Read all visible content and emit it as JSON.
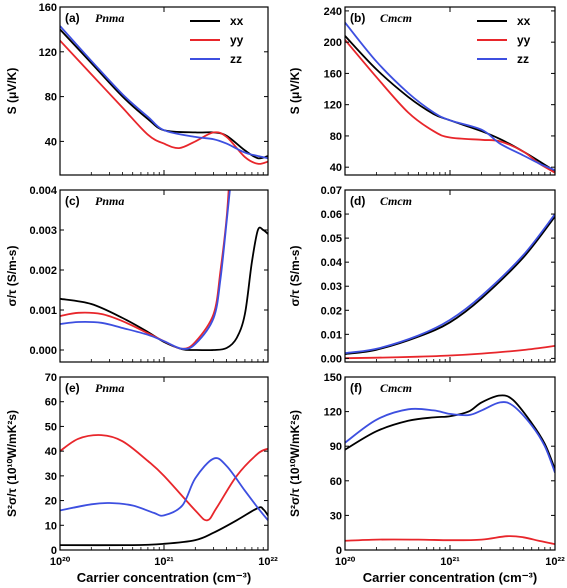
{
  "chart_data": [
    {
      "panel": "(a)",
      "title": "Pnma",
      "type": "line",
      "ylabel": "S (μV/K)",
      "xlabel": "",
      "xscale": "log",
      "xlim": [
        1e+20,
        1e+22
      ],
      "ylim": [
        10,
        160
      ],
      "yticks": [
        "40",
        "80",
        "120",
        "160"
      ],
      "xticks": [],
      "legend": [
        "xx",
        "yy",
        "zz"
      ],
      "legend_position": "top-right",
      "series": [
        {
          "name": "xx",
          "color": "#000000",
          "points": [
            [
              1e+20,
              140
            ],
            [
              2e+20,
              110
            ],
            [
              4e+20,
              80
            ],
            [
              7e+20,
              60
            ],
            [
              1e+21,
              50
            ],
            [
              2e+21,
              48
            ],
            [
              3e+21,
              48
            ],
            [
              4e+21,
              45
            ],
            [
              6e+21,
              32
            ],
            [
              8e+21,
              25
            ],
            [
              1e+22,
              27
            ]
          ]
        },
        {
          "name": "yy",
          "color": "#e8262b",
          "points": [
            [
              1e+20,
              130
            ],
            [
              2e+20,
              100
            ],
            [
              4e+20,
              70
            ],
            [
              7e+20,
              46
            ],
            [
              1e+21,
              38
            ],
            [
              1.4e+21,
              34
            ],
            [
              2e+21,
              40
            ],
            [
              3e+21,
              48
            ],
            [
              4e+21,
              44
            ],
            [
              6e+21,
              26
            ],
            [
              8e+21,
              20
            ],
            [
              1e+22,
              22
            ]
          ]
        },
        {
          "name": "zz",
          "color": "#3d4fe0",
          "points": [
            [
              1e+20,
              143
            ],
            [
              2e+20,
              112
            ],
            [
              4e+20,
              82
            ],
            [
              7e+20,
              62
            ],
            [
              1e+21,
              50
            ],
            [
              2e+21,
              44
            ],
            [
              3e+21,
              42
            ],
            [
              4e+21,
              38
            ],
            [
              6e+21,
              30
            ],
            [
              8e+21,
              27
            ],
            [
              1e+22,
              25
            ]
          ]
        }
      ]
    },
    {
      "panel": "(b)",
      "title": "Cmcm",
      "type": "line",
      "ylabel": "S (μV/K)",
      "xlabel": "",
      "xscale": "log",
      "xlim": [
        1e+20,
        1e+22
      ],
      "ylim": [
        30,
        245
      ],
      "yticks": [
        "40",
        "80",
        "120",
        "160",
        "200",
        "240"
      ],
      "xticks": [],
      "legend": [
        "xx",
        "yy",
        "zz"
      ],
      "legend_position": "top-right",
      "series": [
        {
          "name": "xx",
          "color": "#000000",
          "points": [
            [
              1e+20,
              208
            ],
            [
              2e+20,
              165
            ],
            [
              4e+20,
              130
            ],
            [
              7e+20,
              108
            ],
            [
              1e+21,
              100
            ],
            [
              2e+21,
              86
            ],
            [
              3e+21,
              76
            ],
            [
              5e+21,
              60
            ],
            [
              7e+21,
              48
            ],
            [
              1e+22,
              35
            ]
          ]
        },
        {
          "name": "yy",
          "color": "#e8262b",
          "points": [
            [
              1e+20,
              203
            ],
            [
              2e+20,
              155
            ],
            [
              4e+20,
              110
            ],
            [
              7e+20,
              86
            ],
            [
              1e+21,
              78
            ],
            [
              2e+21,
              75
            ],
            [
              3e+21,
              73
            ],
            [
              5e+21,
              60
            ],
            [
              7e+21,
              45
            ],
            [
              1e+22,
              33
            ]
          ]
        },
        {
          "name": "zz",
          "color": "#3d4fe0",
          "points": [
            [
              1e+20,
              225
            ],
            [
              2e+20,
              175
            ],
            [
              4e+20,
              135
            ],
            [
              7e+20,
              110
            ],
            [
              1e+21,
              100
            ],
            [
              2e+21,
              88
            ],
            [
              3e+21,
              70
            ],
            [
              5e+21,
              55
            ],
            [
              7e+21,
              45
            ],
            [
              1e+22,
              36
            ]
          ]
        }
      ]
    },
    {
      "panel": "(c)",
      "title": "Pnma",
      "type": "line",
      "ylabel": "σ/τ (S/m-s)",
      "xlabel": "",
      "xscale": "log",
      "xlim": [
        1e+20,
        1e+22
      ],
      "ylim": [
        -0.0003,
        0.004
      ],
      "yticks": [
        "0.000",
        "0.001",
        "0.002",
        "0.003",
        "0.004"
      ],
      "xticks": [],
      "series": [
        {
          "name": "xx",
          "color": "#000000",
          "points": [
            [
              1e+20,
              0.00128
            ],
            [
              2e+20,
              0.00115
            ],
            [
              4e+20,
              0.0008
            ],
            [
              7e+20,
              0.00045
            ],
            [
              1e+21,
              0.0002
            ],
            [
              1.5e+21,
              2e-05
            ],
            [
              2e+21,
              0.0
            ],
            [
              3e+21,
              0.0
            ],
            [
              4e+21,
              5e-05
            ],
            [
              5e+21,
              0.0003
            ],
            [
              6e+21,
              0.0009
            ],
            [
              7e+21,
              0.0022
            ],
            [
              8e+21,
              0.003
            ],
            [
              9e+21,
              0.003
            ],
            [
              1e+22,
              0.0029
            ]
          ]
        },
        {
          "name": "yy",
          "color": "#e8262b",
          "points": [
            [
              1e+20,
              0.00085
            ],
            [
              1.5e+20,
              0.00093
            ],
            [
              2.5e+20,
              0.0009
            ],
            [
              4e+20,
              0.00072
            ],
            [
              7e+20,
              0.00042
            ],
            [
              1e+21,
              0.00022
            ],
            [
              1.5e+21,
              3e-05
            ],
            [
              2e+21,
              0.0002
            ],
            [
              3e+21,
              0.0009
            ],
            [
              3.5e+21,
              0.002
            ],
            [
              4e+21,
              0.0033
            ],
            [
              4.3e+21,
              0.0045
            ]
          ]
        },
        {
          "name": "zz",
          "color": "#3d4fe0",
          "points": [
            [
              1e+20,
              0.00065
            ],
            [
              1.5e+20,
              0.0007
            ],
            [
              2.5e+20,
              0.00068
            ],
            [
              4e+20,
              0.00055
            ],
            [
              7e+20,
              0.00038
            ],
            [
              1e+21,
              0.00022
            ],
            [
              1.5e+21,
              3e-05
            ],
            [
              2e+21,
              0.00015
            ],
            [
              3e+21,
              0.0008
            ],
            [
              3.5e+21,
              0.0018
            ],
            [
              4e+21,
              0.0032
            ],
            [
              4.5e+21,
              0.0045
            ]
          ]
        }
      ]
    },
    {
      "panel": "(d)",
      "title": "Cmcm",
      "type": "line",
      "ylabel": "σ/τ (S/m-s)",
      "xlabel": "",
      "xscale": "log",
      "xlim": [
        1e+20,
        1e+22
      ],
      "ylim": [
        -0.0015,
        0.07
      ],
      "yticks": [
        "0.00",
        "0.01",
        "0.02",
        "0.03",
        "0.04",
        "0.05",
        "0.06",
        "0.07"
      ],
      "xticks": [],
      "series": [
        {
          "name": "xx",
          "color": "#000000",
          "points": [
            [
              1e+20,
              0.0018
            ],
            [
              2e+20,
              0.0036
            ],
            [
              5e+20,
              0.009
            ],
            [
              1e+21,
              0.015
            ],
            [
              2e+21,
              0.025
            ],
            [
              5e+21,
              0.042
            ],
            [
              1e+22,
              0.059
            ]
          ]
        },
        {
          "name": "yy",
          "color": "#e8262b",
          "points": [
            [
              1e+20,
              0.0001
            ],
            [
              2e+20,
              0.0003
            ],
            [
              5e+20,
              0.0007
            ],
            [
              1e+21,
              0.0012
            ],
            [
              2e+21,
              0.002
            ],
            [
              5e+21,
              0.0035
            ],
            [
              1e+22,
              0.0052
            ]
          ]
        },
        {
          "name": "zz",
          "color": "#3d4fe0",
          "points": [
            [
              1e+20,
              0.0022
            ],
            [
              2e+20,
              0.004
            ],
            [
              5e+20,
              0.0095
            ],
            [
              1e+21,
              0.016
            ],
            [
              2e+21,
              0.026
            ],
            [
              5e+21,
              0.043
            ],
            [
              1e+22,
              0.06
            ]
          ]
        }
      ]
    },
    {
      "panel": "(e)",
      "title": "Pnma",
      "type": "line",
      "ylabel": "S²σ/τ (10¹⁰W/mK²s)",
      "xlabel": "Carrier concentration (cm⁻³)",
      "xscale": "log",
      "xlim": [
        1e+20,
        1e+22
      ],
      "ylim": [
        0,
        70
      ],
      "yticks": [
        "0",
        "10",
        "20",
        "30",
        "40",
        "50",
        "60",
        "70"
      ],
      "xticks": [
        "10²⁰",
        "10²¹",
        "10²²"
      ],
      "series": [
        {
          "name": "xx",
          "color": "#000000",
          "points": [
            [
              1e+20,
              2
            ],
            [
              5e+20,
              2
            ],
            [
              1e+21,
              2.5
            ],
            [
              2e+21,
              4
            ],
            [
              3e+21,
              7
            ],
            [
              5e+21,
              12
            ],
            [
              8e+21,
              17
            ],
            [
              9e+21,
              16.5
            ],
            [
              1e+22,
              14
            ]
          ]
        },
        {
          "name": "yy",
          "color": "#e8262b",
          "points": [
            [
              1e+20,
              40
            ],
            [
              1.5e+20,
              45
            ],
            [
              2.5e+20,
              46.5
            ],
            [
              4e+20,
              44
            ],
            [
              7e+20,
              36
            ],
            [
              1e+21,
              30
            ],
            [
              2e+21,
              16
            ],
            [
              2.6e+21,
              12
            ],
            [
              3.2e+21,
              17
            ],
            [
              5e+21,
              30
            ],
            [
              8e+21,
              39
            ],
            [
              1e+22,
              41
            ]
          ]
        },
        {
          "name": "zz",
          "color": "#3d4fe0",
          "points": [
            [
              1e+20,
              16
            ],
            [
              2e+20,
              18.5
            ],
            [
              3e+20,
              19
            ],
            [
              5e+20,
              18
            ],
            [
              8e+20,
              15
            ],
            [
              1e+21,
              14
            ],
            [
              1.5e+21,
              18
            ],
            [
              2e+21,
              29
            ],
            [
              3e+21,
              37
            ],
            [
              4e+21,
              34
            ],
            [
              6e+21,
              24
            ],
            [
              8e+21,
              17
            ],
            [
              1e+22,
              12
            ]
          ]
        }
      ]
    },
    {
      "panel": "(f)",
      "title": "Cmcm",
      "type": "line",
      "ylabel": "S²σ/τ (10¹⁰W/mK²s)",
      "xlabel": "Carrier concentration (cm⁻³)",
      "xscale": "log",
      "xlim": [
        1e+20,
        1e+22
      ],
      "ylim": [
        0,
        150
      ],
      "yticks": [
        "0",
        "30",
        "60",
        "90",
        "120",
        "150"
      ],
      "xticks": [
        "10²⁰",
        "10²¹",
        "10²²"
      ],
      "series": [
        {
          "name": "xx",
          "color": "#000000",
          "points": [
            [
              1e+20,
              87
            ],
            [
              2e+20,
              103
            ],
            [
              4e+20,
              112
            ],
            [
              7e+20,
              115
            ],
            [
              1e+21,
              116
            ],
            [
              1.5e+21,
              120
            ],
            [
              2e+21,
              128
            ],
            [
              3e+21,
              134
            ],
            [
              4e+21,
              130
            ],
            [
              6e+21,
              110
            ],
            [
              8e+21,
              92
            ],
            [
              1e+22,
              70
            ]
          ]
        },
        {
          "name": "yy",
          "color": "#e8262b",
          "points": [
            [
              1e+20,
              8
            ],
            [
              2e+20,
              9
            ],
            [
              5e+20,
              9
            ],
            [
              1e+21,
              8.5
            ],
            [
              2e+21,
              9
            ],
            [
              3.5e+21,
              12
            ],
            [
              5e+21,
              11
            ],
            [
              7e+21,
              8
            ],
            [
              1e+22,
              5
            ]
          ]
        },
        {
          "name": "zz",
          "color": "#3d4fe0",
          "points": [
            [
              1e+20,
              93
            ],
            [
              2e+20,
              113
            ],
            [
              4e+20,
              122
            ],
            [
              7e+20,
              121
            ],
            [
              1e+21,
              118
            ],
            [
              1.5e+21,
              117
            ],
            [
              2e+21,
              121
            ],
            [
              3e+21,
              128
            ],
            [
              4e+21,
              125
            ],
            [
              6e+21,
              108
            ],
            [
              8e+21,
              90
            ],
            [
              1e+22,
              67
            ]
          ]
        }
      ]
    }
  ]
}
